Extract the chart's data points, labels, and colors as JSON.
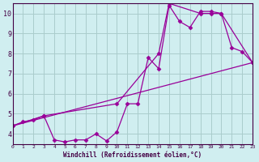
{
  "background_color": "#d0eef0",
  "grid_color": "#aacccc",
  "line_color": "#990099",
  "xlabel": "Windchill (Refroidissement éolien,°C)",
  "xlim": [
    0,
    23
  ],
  "ylim": [
    3.5,
    10.5
  ],
  "yticks": [
    4,
    5,
    6,
    7,
    8,
    9,
    10
  ],
  "xticks": [
    0,
    1,
    2,
    3,
    4,
    5,
    6,
    7,
    8,
    9,
    10,
    11,
    12,
    13,
    14,
    15,
    16,
    17,
    18,
    19,
    20,
    21,
    22,
    23
  ],
  "series1_x": [
    0,
    1,
    2,
    3,
    4,
    5,
    6,
    7,
    8,
    9,
    10,
    11,
    12,
    13,
    14,
    15,
    16,
    17,
    18,
    19,
    20,
    21,
    22,
    23
  ],
  "series1_y": [
    4.4,
    4.6,
    4.7,
    4.9,
    3.7,
    3.6,
    3.7,
    3.7,
    4.0,
    3.65,
    4.1,
    5.5,
    5.5,
    7.8,
    7.25,
    10.4,
    9.6,
    9.3,
    10.1,
    10.1,
    10.0,
    8.3,
    8.1,
    7.55
  ],
  "series2_x": [
    0,
    3,
    10,
    14,
    15,
    18,
    19,
    20,
    23
  ],
  "series2_y": [
    4.4,
    4.9,
    5.5,
    8.0,
    10.5,
    10.0,
    10.0,
    10.0,
    7.55
  ],
  "series3_x": [
    0,
    23
  ],
  "series3_y": [
    4.4,
    7.55
  ]
}
